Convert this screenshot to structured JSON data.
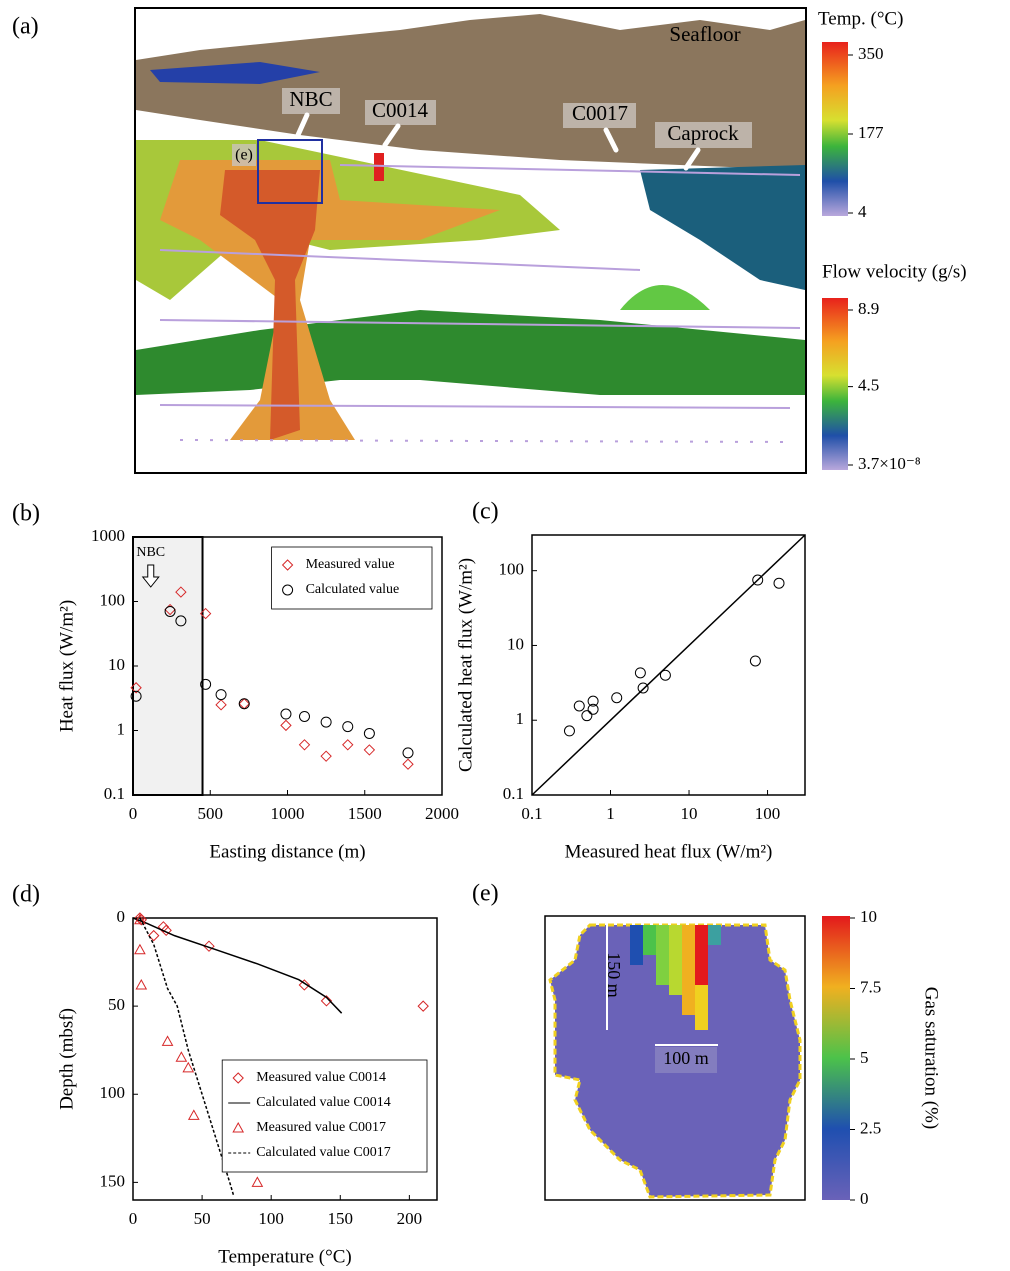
{
  "figure_a": {
    "label": "(a)",
    "annotations": {
      "seafloor": "Seafloor",
      "nbc": "NBC",
      "c0014": "C0014",
      "c0017": "C0017",
      "caprock": "Caprock",
      "inset": "(e)"
    },
    "colorbars": [
      {
        "title": "Temp. (°C)",
        "ticks": [
          350,
          177,
          4
        ]
      },
      {
        "title": "Flow velocity (g/s)",
        "ticks": [
          8.9,
          4.5,
          {
            "value": 3.7e-08,
            "label": "3.7×10⁻⁸"
          }
        ]
      }
    ]
  },
  "figure_e": {
    "label": "(e)",
    "annotations": {
      "height": "150 m",
      "width": "100 m"
    },
    "colorbar": {
      "title": "Gas saturation (%)",
      "ticks": [
        10,
        7.5,
        5,
        2.5,
        0
      ]
    }
  },
  "chart_data": [
    {
      "type": "scatter",
      "panel": "(b)",
      "xlabel": "Easting distance (m)",
      "ylabel": "Heat flux (W/m²)",
      "xlim": [
        0,
        2000
      ],
      "ylim": [
        0.1,
        1000
      ],
      "xticks": [
        0,
        500,
        1000,
        1500,
        2000
      ],
      "yticks": [
        0.1,
        1,
        10,
        100,
        1000
      ],
      "y_log": true,
      "shaded_xlim": [
        0,
        450
      ],
      "annotation": "NBC",
      "legend": "upper right",
      "series": [
        {
          "name": "Measured value",
          "color": "#d62728",
          "marker": "diamond",
          "x": [
            20,
            240,
            310,
            470,
            570,
            720,
            990,
            1110,
            1250,
            1390,
            1530,
            1780
          ],
          "values": [
            4.6,
            75,
            140,
            65,
            2.5,
            2.6,
            1.2,
            0.6,
            0.4,
            0.6,
            0.5,
            0.3
          ]
        },
        {
          "name": "Calculated value",
          "color": "#000000",
          "marker": "circle",
          "x": [
            20,
            240,
            310,
            470,
            570,
            720,
            990,
            1110,
            1250,
            1390,
            1530,
            1780
          ],
          "values": [
            3.4,
            70,
            50,
            5.2,
            3.6,
            2.6,
            1.8,
            1.65,
            1.35,
            1.15,
            0.9,
            0.45
          ]
        }
      ]
    },
    {
      "type": "scatter",
      "panel": "(c)",
      "xlabel": "Measured heat flux (W/m²)",
      "ylabel": "Calculated heat flux (W/m²)",
      "xlim": [
        0.1,
        300
      ],
      "ylim": [
        0.1,
        300
      ],
      "xticks": [
        0.1,
        1,
        10,
        100
      ],
      "yticks": [
        0.1,
        1,
        10,
        100
      ],
      "x_log": true,
      "y_log": true,
      "identity_line": true,
      "series": [
        {
          "color": "#000000",
          "marker": "circle",
          "x": [
            0.3,
            0.4,
            0.5,
            0.6,
            0.6,
            1.2,
            2.4,
            2.6,
            5,
            70,
            75,
            140
          ],
          "values": [
            0.72,
            1.55,
            1.15,
            1.8,
            1.4,
            2.0,
            4.3,
            2.7,
            4,
            6.2,
            75,
            68
          ]
        }
      ]
    },
    {
      "type": "scatter",
      "panel": "(d)",
      "xlabel": "Temperature (°C)",
      "ylabel": "Depth (mbsf)",
      "xlim": [
        0,
        220
      ],
      "ylim": [
        0,
        160
      ],
      "y_inverted": true,
      "xticks": [
        0,
        50,
        100,
        150,
        200
      ],
      "yticks": [
        0,
        50,
        100,
        150
      ],
      "legend": "lower right",
      "series": [
        {
          "name": "Measured value C0014",
          "color": "#d62728",
          "marker": "diamond",
          "x": [
            5,
            6,
            15,
            22,
            24,
            55,
            124,
            140,
            210
          ],
          "values": [
            0,
            1,
            10,
            5,
            7,
            16,
            38,
            47,
            50
          ]
        },
        {
          "name": "Calculated value C0014",
          "color": "#000000",
          "line_style": "solid",
          "x": [
            0,
            10,
            30,
            60,
            90,
            120,
            140,
            151
          ],
          "values": [
            0,
            3,
            10,
            18,
            26,
            35,
            45,
            54
          ]
        },
        {
          "name": "Measured value C0017",
          "color": "#d62728",
          "marker": "triangle",
          "x": [
            5,
            5,
            6,
            25,
            35,
            40,
            44,
            90
          ],
          "values": [
            1,
            18,
            38,
            70,
            79,
            85,
            112,
            150
          ]
        },
        {
          "name": "Calculated value C0017",
          "color": "#000000",
          "line_style": "dashed",
          "x": [
            5,
            15,
            25,
            32,
            40,
            50,
            60,
            70,
            73
          ],
          "values": [
            0,
            15,
            40,
            50,
            75,
            100,
            125,
            150,
            158
          ]
        }
      ]
    }
  ]
}
